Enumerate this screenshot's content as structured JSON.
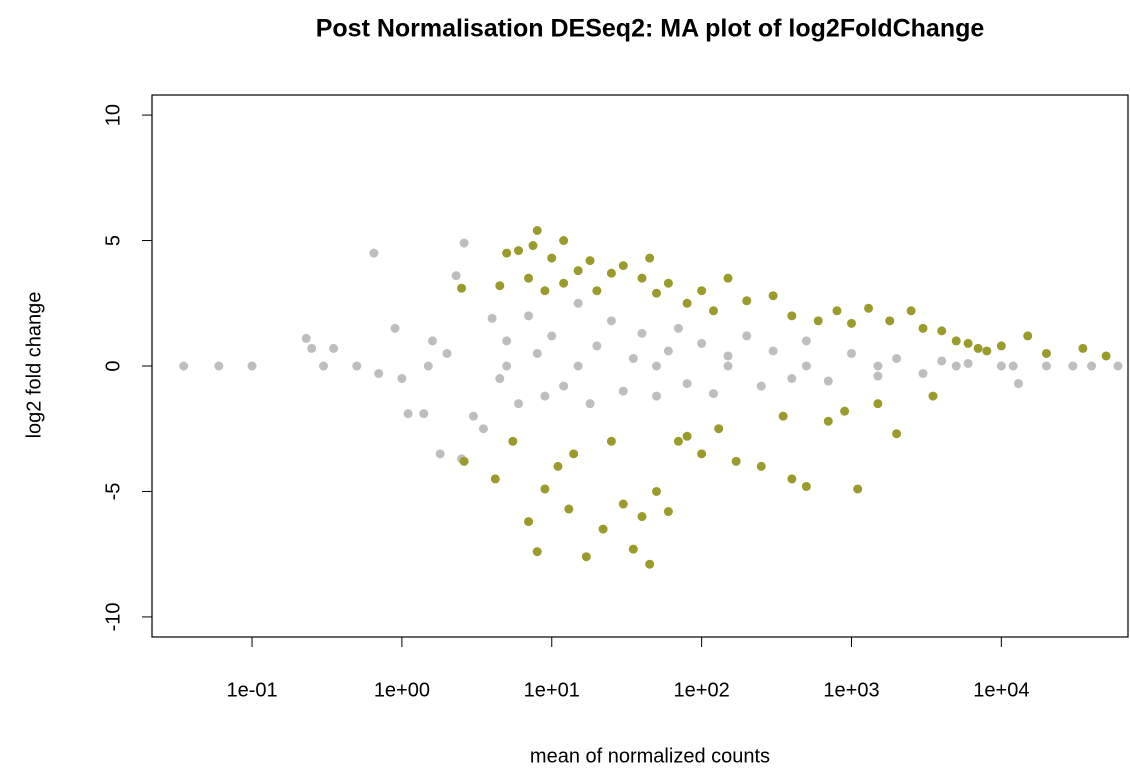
{
  "chart_data": {
    "type": "scatter",
    "title": "Post Normalisation DESeq2: MA plot of log2FoldChange",
    "xlabel": "mean of normalized counts",
    "ylabel": "log2 fold change",
    "xscale": "log",
    "xlim": [
      0.0215,
      70000
    ],
    "ylim": [
      -10.8,
      10.8
    ],
    "xticks": [
      {
        "value": 0.1,
        "label": "1e-01"
      },
      {
        "value": 1,
        "label": "1e+00"
      },
      {
        "value": 10,
        "label": "1e+01"
      },
      {
        "value": 100,
        "label": "1e+02"
      },
      {
        "value": 1000,
        "label": "1e+03"
      },
      {
        "value": 10000,
        "label": "1e+04"
      }
    ],
    "yticks": [
      -10,
      -5,
      0,
      5,
      10
    ],
    "series": [
      {
        "color": "#bebebe",
        "x": [
          0.035,
          0.06,
          0.1,
          0.23,
          0.25,
          0.3,
          0.35,
          0.5,
          0.65,
          0.7,
          0.9,
          1.0,
          1.1,
          1.4,
          1.5,
          1.6,
          1.8,
          2.0,
          2.3,
          2.5,
          2.6,
          3.0,
          3.5,
          4.0,
          4.5,
          5,
          5,
          6,
          7,
          8,
          9,
          10,
          12,
          15,
          15,
          18,
          20,
          25,
          30,
          35,
          40,
          50,
          50,
          60,
          70,
          80,
          100,
          120,
          150,
          150,
          200,
          250,
          300,
          400,
          500,
          500,
          700,
          1000,
          1500,
          1500,
          2000,
          3000,
          4000,
          5000,
          6000,
          10000,
          12000,
          13000,
          20000,
          30000,
          40000,
          60000
        ],
        "y": [
          0,
          0,
          0,
          1.1,
          0.7,
          0,
          0.7,
          0,
          4.5,
          -0.3,
          1.5,
          -0.5,
          -1.9,
          -1.9,
          0,
          1.0,
          -3.5,
          0.5,
          3.6,
          -3.7,
          4.9,
          -2.0,
          -2.5,
          1.9,
          -0.5,
          1.0,
          0,
          -1.5,
          2.0,
          0.5,
          -1.2,
          1.2,
          -0.8,
          2.5,
          0,
          -1.5,
          0.8,
          1.8,
          -1.0,
          0.3,
          1.3,
          -1.2,
          0,
          0.6,
          1.5,
          -0.7,
          0.9,
          -1.1,
          0.4,
          0,
          1.2,
          -0.8,
          0.6,
          -0.5,
          1.0,
          0,
          -0.6,
          0.5,
          -0.4,
          0,
          0.3,
          -0.3,
          0.2,
          0,
          0.1,
          0,
          0,
          -0.7,
          0,
          0,
          0,
          0
        ]
      },
      {
        "color": "#9b9b2b",
        "x": [
          2.5,
          2.6,
          4.2,
          4.5,
          5,
          5.5,
          6,
          7,
          7,
          7.5,
          8,
          8,
          9,
          9,
          10,
          11,
          12,
          12,
          13,
          14,
          15,
          17,
          18,
          20,
          22,
          25,
          25,
          30,
          30,
          35,
          40,
          40,
          45,
          45,
          50,
          50,
          60,
          60,
          70,
          80,
          80,
          100,
          100,
          120,
          130,
          150,
          170,
          200,
          250,
          300,
          350,
          400,
          400,
          500,
          600,
          700,
          800,
          900,
          1000,
          1100,
          1300,
          1500,
          1800,
          2000,
          2500,
          3000,
          3500,
          4000,
          5000,
          6000,
          7000,
          8000,
          10000,
          15000,
          20000,
          35000,
          50000
        ],
        "y": [
          3.1,
          -3.8,
          -4.5,
          3.2,
          4.5,
          -3.0,
          4.6,
          3.5,
          -6.2,
          4.8,
          5.4,
          -7.4,
          -4.9,
          3.0,
          4.3,
          -4.0,
          3.3,
          5.0,
          -5.7,
          -3.5,
          3.8,
          -7.6,
          4.2,
          3.0,
          -6.5,
          -3.0,
          3.7,
          -5.5,
          4.0,
          -7.3,
          3.5,
          -6.0,
          -7.9,
          4.3,
          2.9,
          -5.0,
          -5.8,
          3.3,
          -3.0,
          2.5,
          -2.8,
          3.0,
          -3.5,
          2.2,
          -2.5,
          3.5,
          -3.8,
          2.6,
          -4.0,
          2.8,
          -2.0,
          2.0,
          -4.5,
          -4.8,
          1.8,
          -2.2,
          2.2,
          -1.8,
          1.7,
          -4.9,
          2.3,
          -1.5,
          1.8,
          -2.7,
          2.2,
          1.5,
          -1.2,
          1.4,
          1.0,
          0.9,
          0.7,
          0.6,
          0.8,
          1.2,
          0.5,
          0.7,
          0.4
        ]
      }
    ]
  }
}
